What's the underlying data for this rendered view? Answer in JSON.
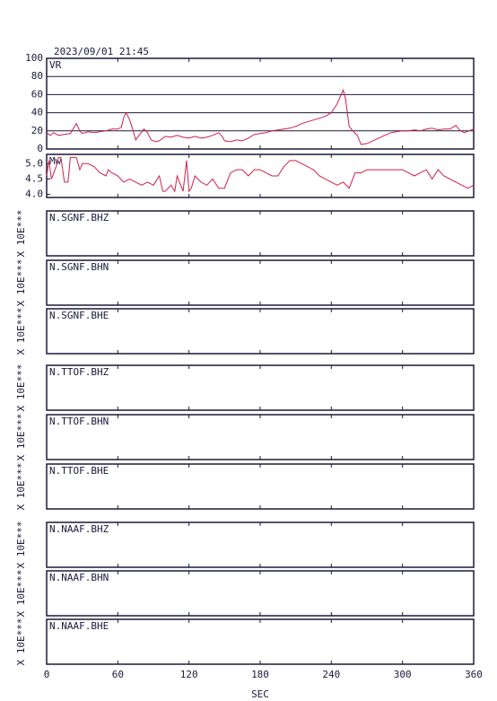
{
  "chart_data": [
    {
      "type": "line",
      "title": "2023/09/01 21:45",
      "label": "VR",
      "color": "#d0204a",
      "x": [
        0,
        3,
        6,
        10,
        15,
        20,
        25,
        28,
        30,
        35,
        40,
        45,
        50,
        55,
        60,
        63,
        65,
        67,
        70,
        73,
        75,
        78,
        82,
        85,
        88,
        92,
        95,
        100,
        105,
        110,
        115,
        120,
        125,
        130,
        135,
        140,
        145,
        148,
        150,
        155,
        160,
        165,
        170,
        175,
        180,
        185,
        190,
        195,
        200,
        205,
        210,
        215,
        220,
        225,
        230,
        235,
        240,
        245,
        250,
        252,
        255,
        258,
        262,
        265,
        270,
        275,
        280,
        285,
        290,
        295,
        300,
        305,
        310,
        315,
        320,
        325,
        330,
        335,
        340,
        345,
        348,
        352,
        356,
        360
      ],
      "values": [
        18,
        15,
        18,
        15,
        16,
        17,
        28,
        20,
        17,
        19,
        18,
        19,
        20,
        22,
        22,
        24,
        35,
        40,
        32,
        20,
        10,
        15,
        22,
        18,
        10,
        8,
        9,
        14,
        13,
        15,
        13,
        12,
        14,
        12,
        13,
        15,
        18,
        14,
        9,
        8,
        10,
        9,
        12,
        16,
        17,
        18,
        20,
        21,
        22,
        23,
        25,
        28,
        30,
        32,
        34,
        36,
        40,
        50,
        65,
        55,
        25,
        20,
        15,
        5,
        6,
        9,
        12,
        15,
        18,
        19,
        20,
        20,
        21,
        20,
        22,
        23,
        21,
        22,
        22,
        26,
        21,
        18,
        20,
        22
      ],
      "xlim": [
        0,
        360
      ],
      "xticks": [
        0,
        60,
        120,
        180,
        240,
        300,
        360
      ],
      "ylim": [
        0,
        100
      ],
      "yticks": [
        0,
        20,
        40,
        60,
        80,
        100
      ],
      "grid": true
    },
    {
      "type": "line",
      "label": "Mw",
      "color": "#d0204a",
      "x": [
        0,
        2,
        4,
        8,
        10,
        12,
        15,
        18,
        20,
        25,
        28,
        30,
        35,
        40,
        45,
        50,
        52,
        55,
        60,
        65,
        70,
        75,
        80,
        85,
        90,
        95,
        98,
        100,
        105,
        108,
        110,
        115,
        118,
        120,
        122,
        125,
        130,
        135,
        140,
        145,
        150,
        155,
        160,
        165,
        170,
        175,
        180,
        185,
        190,
        195,
        200,
        205,
        210,
        215,
        220,
        225,
        230,
        235,
        240,
        245,
        250,
        255,
        260,
        265,
        270,
        280,
        290,
        300,
        310,
        320,
        325,
        330,
        335,
        340,
        345,
        350,
        355,
        360
      ],
      "values": [
        4.6,
        5.1,
        4.5,
        4.9,
        5.2,
        5.2,
        4.4,
        4.4,
        5.2,
        5.2,
        4.8,
        5.0,
        5.0,
        4.9,
        4.7,
        4.6,
        4.8,
        4.7,
        4.6,
        4.4,
        4.5,
        4.4,
        4.3,
        4.4,
        4.3,
        4.6,
        4.1,
        4.1,
        4.3,
        4.1,
        4.6,
        4.1,
        5.1,
        4.1,
        4.2,
        4.6,
        4.4,
        4.3,
        4.5,
        4.2,
        4.2,
        4.7,
        4.8,
        4.8,
        4.6,
        4.8,
        4.8,
        4.7,
        4.6,
        4.6,
        4.9,
        5.1,
        5.1,
        5.0,
        4.9,
        4.8,
        4.6,
        4.5,
        4.4,
        4.3,
        4.4,
        4.2,
        4.7,
        4.7,
        4.8,
        4.8,
        4.8,
        4.8,
        4.6,
        4.8,
        4.5,
        4.8,
        4.6,
        4.5,
        4.4,
        4.3,
        4.2,
        4.3
      ],
      "xlim": [
        0,
        360
      ],
      "xticks": [
        0,
        60,
        120,
        180,
        240,
        300,
        360
      ],
      "ylim": [
        3.9,
        5.3
      ],
      "yticks": [
        {
          "value": 4,
          "label": "4.0"
        },
        4.5,
        {
          "value": 5,
          "label": "5.0"
        }
      ]
    },
    {
      "type": "panel",
      "label": "N.SGNF.BHZ",
      "ylabel": "X 10E***",
      "xlim": [
        0,
        360
      ],
      "xticks": [
        0,
        60,
        120,
        180,
        240,
        300,
        360
      ]
    },
    {
      "type": "panel",
      "label": "N.SGNF.BHN",
      "ylabel": "X 10E***",
      "xlim": [
        0,
        360
      ],
      "xticks": [
        0,
        60,
        120,
        180,
        240,
        300,
        360
      ]
    },
    {
      "type": "panel",
      "label": "N.SGNF.BHE",
      "ylabel": "X 10E***",
      "xlim": [
        0,
        360
      ],
      "xticks": [
        0,
        60,
        120,
        180,
        240,
        300,
        360
      ]
    },
    {
      "type": "panel",
      "label": "N.TTOF.BHZ",
      "ylabel": "X 10E***",
      "xlim": [
        0,
        360
      ],
      "xticks": [
        0,
        60,
        120,
        180,
        240,
        300,
        360
      ]
    },
    {
      "type": "panel",
      "label": "N.TTOF.BHN",
      "ylabel": "X 10E***",
      "xlim": [
        0,
        360
      ],
      "xticks": [
        0,
        60,
        120,
        180,
        240,
        300,
        360
      ]
    },
    {
      "type": "panel",
      "label": "N.TTOF.BHE",
      "ylabel": "X 10E***",
      "xlim": [
        0,
        360
      ],
      "xticks": [
        0,
        60,
        120,
        180,
        240,
        300,
        360
      ]
    },
    {
      "type": "panel",
      "label": "N.NAAF.BHZ",
      "ylabel": "X 10E***",
      "xlim": [
        0,
        360
      ],
      "xticks": [
        0,
        60,
        120,
        180,
        240,
        300,
        360
      ]
    },
    {
      "type": "panel",
      "label": "N.NAAF.BHN",
      "ylabel": "X 10E***",
      "xlim": [
        0,
        360
      ],
      "xticks": [
        0,
        60,
        120,
        180,
        240,
        300,
        360
      ]
    },
    {
      "type": "panel",
      "label": "N.NAAF.BHE",
      "ylabel": "X 10E***",
      "xlim": [
        0,
        360
      ],
      "xticks": [
        0,
        60,
        120,
        180,
        240,
        300,
        360
      ],
      "xlabel": "SEC"
    }
  ]
}
